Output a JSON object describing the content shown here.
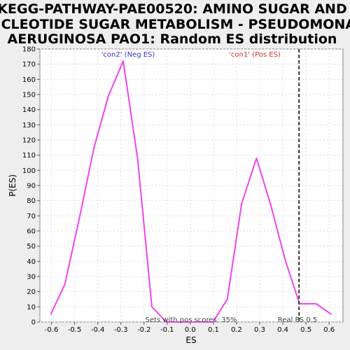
{
  "chart_data": {
    "type": "line",
    "title_lines": [
      "KEGG-PATHWAY-PAE00520: AMINO SUGAR AND",
      "NUCLEOTIDE SUGAR METABOLISM - PSEUDOMONAS",
      "AERUGINOSA PAO1: Random ES distribution"
    ],
    "xlabel": "ES",
    "ylabel": "P(ES)",
    "xlim": [
      -0.65,
      0.66
    ],
    "ylim": [
      0,
      180
    ],
    "xticks": [
      -0.6,
      -0.5,
      -0.4,
      -0.3,
      -0.2,
      -0.1,
      0.0,
      0.1,
      0.2,
      0.3,
      0.4,
      0.5,
      0.6
    ],
    "xtick_labels": [
      "-0.6",
      "-0.5",
      "-0.4",
      "-0.3",
      "-0.2",
      "-0.1",
      "0.0",
      "0.1",
      "0.2",
      "0.3",
      "0.4",
      "0.5",
      "0.6"
    ],
    "yticks": [
      0,
      10,
      20,
      30,
      40,
      50,
      60,
      70,
      80,
      90,
      100,
      110,
      120,
      130,
      140,
      150,
      160,
      170,
      180
    ],
    "ytick_labels": [
      "0",
      "10",
      "20",
      "30",
      "40",
      "50",
      "60",
      "70",
      "80",
      "90",
      "100",
      "110",
      "120",
      "130",
      "140",
      "150",
      "160",
      "170",
      "180"
    ],
    "grid": true,
    "series": [
      {
        "color": "#ee44ee",
        "x": [
          -0.603,
          -0.542,
          -0.48,
          -0.416,
          -0.354,
          -0.29,
          -0.228,
          -0.166,
          -0.104,
          -0.042,
          0.02,
          0.098,
          0.16,
          0.222,
          0.286,
          0.348,
          0.41,
          0.472,
          0.544,
          0.61
        ],
        "y": [
          5,
          25,
          68,
          115,
          149,
          172,
          108,
          10,
          0,
          0,
          0,
          0,
          15,
          78,
          108,
          77,
          41,
          12,
          12,
          5
        ]
      }
    ],
    "real_es": 0.47,
    "annotations": {
      "neg": {
        "text": "'con2' (Neg ES)",
        "color": "#3333cc"
      },
      "pos": {
        "text": "'con1' (Pos ES)",
        "color": "#cc3333"
      },
      "pos_scores": "Sets with pos scores: 35%",
      "real_es_label": "Real ES 0.5"
    }
  }
}
